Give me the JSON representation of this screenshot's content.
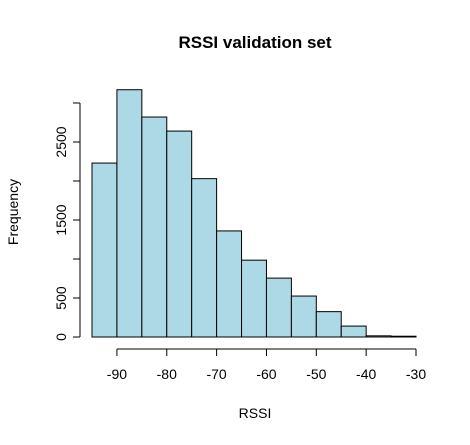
{
  "chart_data": {
    "type": "bar",
    "title": "RSSI validation set",
    "xlabel": "RSSI",
    "ylabel": "Frequency",
    "bar_color": "#add8e6",
    "edge_color": "#000000",
    "bins": [
      {
        "x0": -95,
        "x1": -90,
        "count": 2230
      },
      {
        "x0": -90,
        "x1": -85,
        "count": 3170
      },
      {
        "x0": -85,
        "x1": -80,
        "count": 2820
      },
      {
        "x0": -80,
        "x1": -75,
        "count": 2640
      },
      {
        "x0": -75,
        "x1": -70,
        "count": 2030
      },
      {
        "x0": -70,
        "x1": -65,
        "count": 1360
      },
      {
        "x0": -65,
        "x1": -60,
        "count": 985
      },
      {
        "x0": -60,
        "x1": -55,
        "count": 755
      },
      {
        "x0": -55,
        "x1": -50,
        "count": 525
      },
      {
        "x0": -50,
        "x1": -45,
        "count": 325
      },
      {
        "x0": -45,
        "x1": -40,
        "count": 140
      },
      {
        "x0": -40,
        "x1": -35,
        "count": 15
      },
      {
        "x0": -35,
        "x1": -30,
        "count": 10
      }
    ],
    "xlim": [
      -95,
      -30
    ],
    "ylim": [
      0,
      3170
    ],
    "x_ticks": [
      -90,
      -80,
      -70,
      -60,
      -50,
      -40,
      -30
    ],
    "x_tick_labels": [
      "-90",
      "-80",
      "-70",
      "-60",
      "-50",
      "-40",
      "-30"
    ],
    "y_ticks": [
      0,
      500,
      1000,
      1500,
      2000,
      2500,
      3000
    ],
    "y_tick_labels": [
      "0",
      "500",
      "",
      "1500",
      "",
      "2500",
      ""
    ],
    "grid": false,
    "legend": "none"
  }
}
